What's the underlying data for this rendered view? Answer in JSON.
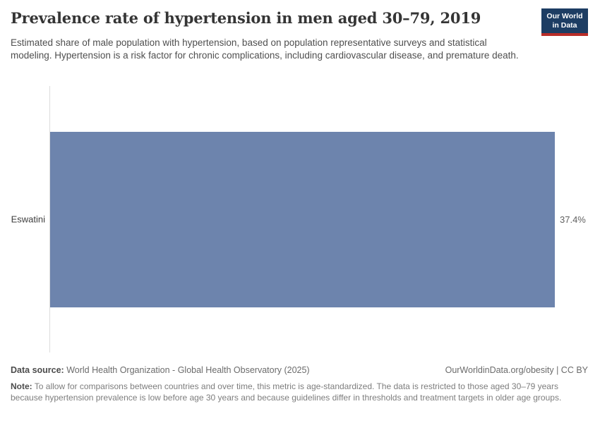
{
  "header": {
    "title": "Prevalence rate of hypertension in men aged 30–79, 2019",
    "subtitle": "Estimated share of male population with hypertension, based on population representative surveys and statistical modeling. Hypertension is a risk factor for chronic complications, including cardiovascular disease, and premature death.",
    "logo": {
      "line1": "Our World",
      "line2": "in Data",
      "background_color": "#1d3d63",
      "accent_color": "#b92d28"
    }
  },
  "chart_data": {
    "type": "bar",
    "orientation": "horizontal",
    "categories": [
      "Eswatini"
    ],
    "values": [
      37.4
    ],
    "value_labels": [
      "37.4%"
    ],
    "unit": "%",
    "title": "Prevalence rate of hypertension in men aged 30–79, 2019",
    "xlabel": "",
    "ylabel": "",
    "grid": false,
    "legend": false,
    "bar_color": "#6d84ad",
    "axis_line_color": "#dcdcdc"
  },
  "footer": {
    "data_source_label": "Data source:",
    "data_source_text": "World Health Organization - Global Health Observatory (2025)",
    "attribution": "OurWorldinData.org/obesity | CC BY",
    "note_label": "Note:",
    "note_text": "To allow for comparisons between countries and over time, this metric is age-standardized. The data is restricted to those aged 30–79 years because hypertension prevalence is low before age 30 years and because guidelines differ in thresholds and treatment targets in older age groups."
  }
}
